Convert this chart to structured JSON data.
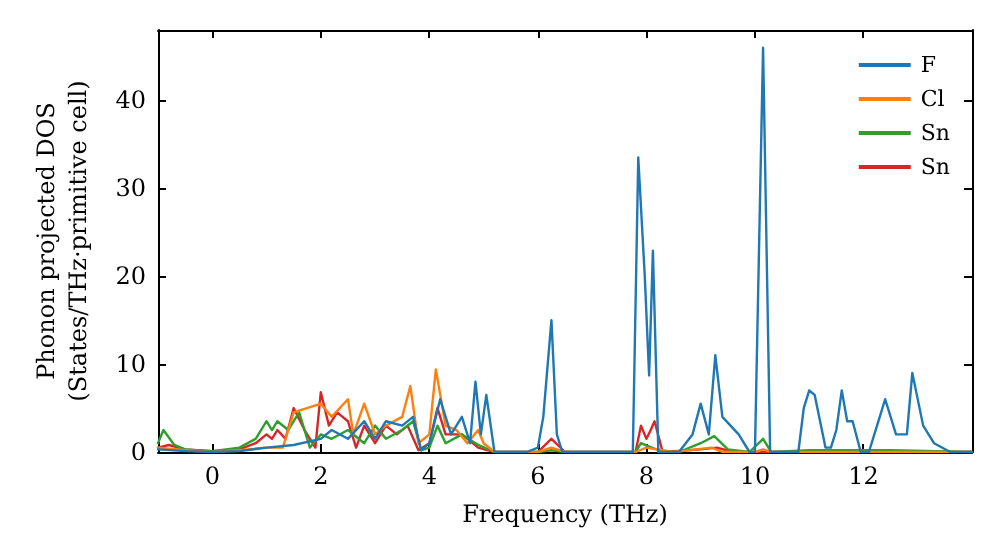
{
  "chart_data": {
    "type": "line",
    "xlabel": "Frequency (THz)",
    "ylabel": "Phonon projected DOS\n(States/THz·primitive cell)",
    "xlim": [
      -1,
      14
    ],
    "xticks": [
      0,
      2,
      4,
      6,
      8,
      10,
      12
    ],
    "ylim": [
      0,
      48
    ],
    "yticks": [
      0,
      10,
      20,
      30,
      40
    ],
    "grid": false,
    "legend": "top right",
    "marker": "none",
    "line_style": "solid",
    "series": [
      {
        "name": "F",
        "color": "#1f77b4",
        "x": [
          -1.0,
          -0.5,
          0,
          0.5,
          1.0,
          1.5,
          2.0,
          2.2,
          2.5,
          2.8,
          3.0,
          3.2,
          3.5,
          3.7,
          3.85,
          4.0,
          4.2,
          4.4,
          4.6,
          4.75,
          4.85,
          4.95,
          5.05,
          5.2,
          5.8,
          6.0,
          6.1,
          6.25,
          6.35,
          6.45,
          7.75,
          7.85,
          7.97,
          8.05,
          8.12,
          8.22,
          8.6,
          8.85,
          9.0,
          9.15,
          9.27,
          9.4,
          9.7,
          9.9,
          10.0,
          10.15,
          10.28,
          10.7,
          10.8,
          10.9,
          11.0,
          11.1,
          11.3,
          11.4,
          11.5,
          11.6,
          11.7,
          11.8,
          11.95,
          12.1,
          12.25,
          12.4,
          12.6,
          12.8,
          12.9,
          13.1,
          13.3,
          13.6,
          14.0
        ],
        "values": [
          0.3,
          0.1,
          0,
          0.1,
          0.5,
          0.8,
          1.5,
          2.5,
          1.5,
          3.5,
          1.5,
          3.5,
          3,
          4,
          0.2,
          1,
          6,
          2,
          4,
          1,
          8,
          2,
          6.5,
          0,
          0,
          0.5,
          4,
          15,
          2,
          0,
          0,
          33.5,
          20,
          8.7,
          22.9,
          0,
          0,
          2,
          5.5,
          2,
          11,
          4,
          2,
          0,
          0,
          46,
          0,
          0,
          0,
          5,
          7,
          6.5,
          0.5,
          0.5,
          2.5,
          7,
          3.5,
          3.5,
          0,
          0,
          3,
          6,
          2,
          2,
          9,
          3,
          1,
          0,
          0
        ]
      },
      {
        "name": "Cl",
        "color": "#ff7f0e",
        "x": [
          -1.0,
          -0.5,
          0,
          0.5,
          1.0,
          1.3,
          1.5,
          2.0,
          2.2,
          2.5,
          2.6,
          2.8,
          3.0,
          3.2,
          3.5,
          3.65,
          3.8,
          4.0,
          4.12,
          4.3,
          4.5,
          4.7,
          4.9,
          5.0,
          5.2,
          6.0,
          6.25,
          6.5,
          7.8,
          8.0,
          8.2,
          8.5,
          9.2,
          9.4,
          10.0,
          10.15,
          10.3,
          14.0
        ],
        "values": [
          0.5,
          0.2,
          0,
          0.2,
          0.5,
          0.5,
          4.5,
          5.5,
          4,
          6,
          2,
          5.5,
          2,
          3,
          4,
          7.5,
          1,
          2,
          9.4,
          3,
          2.5,
          1,
          2.5,
          1,
          0,
          0,
          0.5,
          0,
          0,
          0.5,
          0.3,
          0,
          0.5,
          0,
          0,
          0.3,
          0,
          0
        ]
      },
      {
        "name": "Sn",
        "color": "#2ca02c",
        "x": [
          -1.0,
          -0.9,
          -0.7,
          -0.5,
          0,
          0.5,
          0.8,
          1.0,
          1.1,
          1.2,
          1.4,
          1.6,
          1.8,
          2.0,
          2.2,
          2.5,
          2.8,
          3.0,
          3.2,
          3.5,
          3.7,
          3.85,
          4.0,
          4.15,
          4.3,
          4.6,
          4.9,
          5.2,
          6.0,
          6.25,
          6.5,
          7.8,
          7.9,
          8.1,
          8.3,
          8.6,
          9.0,
          9.25,
          9.5,
          9.9,
          10.15,
          10.3,
          11.0,
          12.5,
          14.0
        ],
        "values": [
          1,
          2.5,
          0.8,
          0.3,
          0.1,
          0.5,
          1.5,
          3.5,
          2.5,
          3.5,
          2.5,
          4.5,
          0.5,
          2,
          1.5,
          2.5,
          1,
          3,
          1.5,
          2.5,
          3.5,
          0.2,
          0.5,
          3,
          1,
          2,
          0.8,
          0,
          0,
          0.2,
          0,
          0,
          1,
          0.5,
          0,
          0,
          1,
          1.8,
          0.3,
          0,
          1.5,
          0,
          0.2,
          0.2,
          0
        ]
      },
      {
        "name": "Sn",
        "color": "#d62728",
        "x": [
          -1.0,
          -0.8,
          -0.5,
          0,
          0.5,
          0.8,
          1.0,
          1.1,
          1.2,
          1.35,
          1.5,
          1.7,
          1.9,
          2.0,
          2.15,
          2.3,
          2.5,
          2.65,
          2.8,
          3.0,
          3.2,
          3.4,
          3.6,
          3.8,
          4.0,
          4.15,
          4.3,
          4.6,
          4.9,
          5.2,
          6.0,
          6.25,
          6.5,
          7.8,
          7.9,
          8.0,
          8.08,
          8.15,
          8.3,
          9.0,
          9.3,
          9.6,
          14.0
        ],
        "values": [
          0.5,
          0.8,
          0.3,
          0.1,
          0.3,
          1,
          2,
          1.5,
          2.5,
          1.5,
          5,
          2.5,
          0.5,
          6.8,
          3,
          4.5,
          3.5,
          0.5,
          3,
          1,
          3,
          2,
          3,
          0.2,
          1,
          5,
          2,
          2,
          0.5,
          0,
          0,
          1.5,
          0,
          0,
          3,
          1.5,
          2.5,
          3.5,
          0,
          0.3,
          0.5,
          0,
          0
        ]
      }
    ]
  }
}
